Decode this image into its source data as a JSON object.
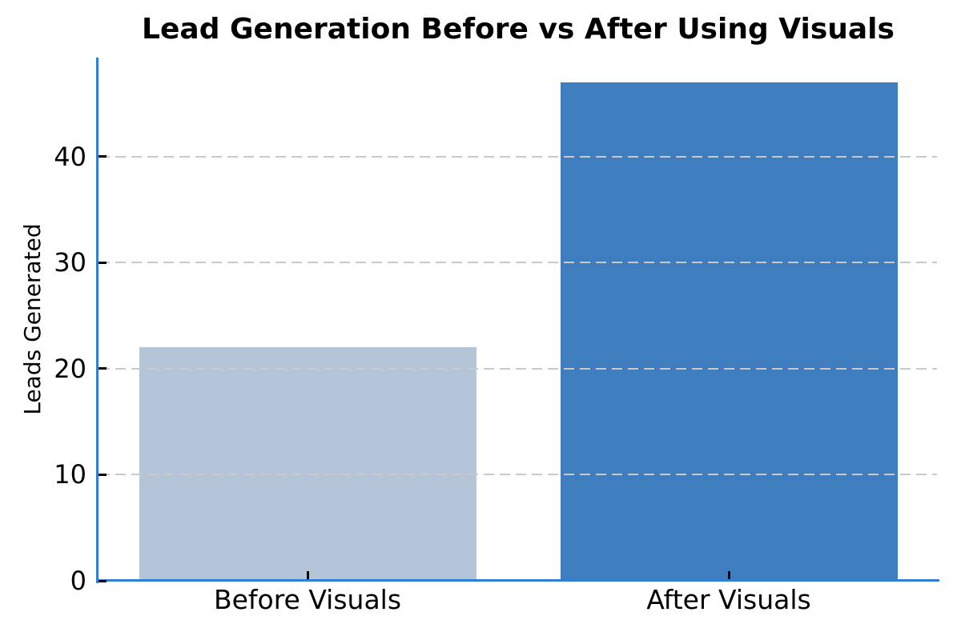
{
  "chart_data": {
    "type": "bar",
    "title": "Lead Generation Before vs After Using Visuals",
    "categories": [
      "Before Visuals",
      "After Visuals"
    ],
    "values": [
      22,
      47
    ],
    "xlabel": "",
    "ylabel": "Leads Generated",
    "ylim": [
      0,
      49.35
    ],
    "yticks": [
      0,
      10,
      20,
      30,
      40
    ],
    "bar_colors": [
      "#b4c5d8",
      "#3e7ebf"
    ],
    "grid": {
      "axis": "y",
      "style": "dashed",
      "color": "#c9c9c9",
      "drawn_above_bars": true
    },
    "legend_position": "none",
    "colors": {
      "spine": "#2f80d4",
      "tick_mark": "#000000",
      "text": "#000000",
      "background": "#ffffff"
    }
  }
}
